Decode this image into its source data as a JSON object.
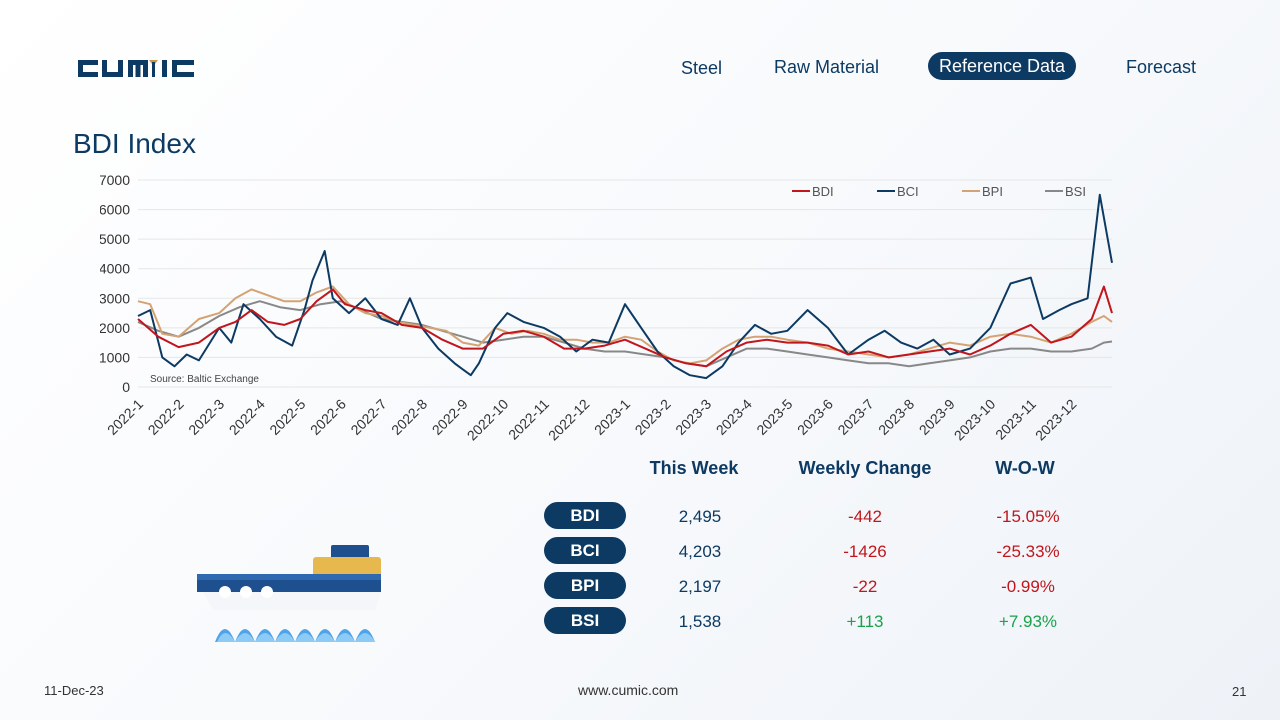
{
  "brand": {
    "logo_text": "CUMIC"
  },
  "nav": {
    "items": [
      {
        "label": "Steel",
        "active": false
      },
      {
        "label": "Raw Material",
        "active": false
      },
      {
        "label": "Reference Data",
        "active": true
      },
      {
        "label": "Forecast",
        "active": false
      }
    ]
  },
  "page": {
    "title": "BDI Index"
  },
  "chart_data": {
    "type": "line",
    "title": "",
    "source": "Source: Baltic Exchange",
    "ylim": [
      0,
      7000
    ],
    "yticks": [
      0,
      1000,
      2000,
      3000,
      4000,
      5000,
      6000,
      7000
    ],
    "categories": [
      "2022-1",
      "2022-2",
      "2022-3",
      "2022-4",
      "2022-5",
      "2022-6",
      "2022-7",
      "2022-8",
      "2022-9",
      "2022-10",
      "2022-11",
      "2022-12",
      "2023-1",
      "2023-2",
      "2023-3",
      "2023-4",
      "2023-5",
      "2023-6",
      "2023-7",
      "2023-8",
      "2023-9",
      "2023-10",
      "2023-11",
      "2023-12"
    ],
    "legend_position": "top-right",
    "grid": true,
    "series": [
      {
        "name": "BDI",
        "color": "#c0161c",
        "points": [
          [
            0,
            2300
          ],
          [
            0.5,
            1700
          ],
          [
            1,
            1350
          ],
          [
            1.5,
            1500
          ],
          [
            2,
            2000
          ],
          [
            2.4,
            2200
          ],
          [
            2.8,
            2600
          ],
          [
            3.2,
            2200
          ],
          [
            3.6,
            2100
          ],
          [
            4,
            2300
          ],
          [
            4.4,
            2900
          ],
          [
            4.8,
            3300
          ],
          [
            5.1,
            2800
          ],
          [
            5.6,
            2600
          ],
          [
            6,
            2500
          ],
          [
            6.5,
            2100
          ],
          [
            7,
            2000
          ],
          [
            7.5,
            1600
          ],
          [
            8,
            1300
          ],
          [
            8.5,
            1300
          ],
          [
            9,
            1800
          ],
          [
            9.5,
            1900
          ],
          [
            10,
            1700
          ],
          [
            10.5,
            1300
          ],
          [
            11,
            1300
          ],
          [
            11.5,
            1400
          ],
          [
            12,
            1600
          ],
          [
            12.5,
            1300
          ],
          [
            13,
            1000
          ],
          [
            13.5,
            800
          ],
          [
            14,
            700
          ],
          [
            14.5,
            1200
          ],
          [
            15,
            1500
          ],
          [
            15.5,
            1600
          ],
          [
            16,
            1500
          ],
          [
            16.5,
            1500
          ],
          [
            17,
            1400
          ],
          [
            17.5,
            1100
          ],
          [
            18,
            1200
          ],
          [
            18.5,
            1000
          ],
          [
            19,
            1100
          ],
          [
            19.5,
            1200
          ],
          [
            20,
            1300
          ],
          [
            20.5,
            1100
          ],
          [
            21,
            1400
          ],
          [
            21.5,
            1800
          ],
          [
            22,
            2100
          ],
          [
            22.5,
            1500
          ],
          [
            23,
            1700
          ],
          [
            23.5,
            2300
          ],
          [
            23.8,
            3400
          ],
          [
            24,
            2500
          ]
        ]
      },
      {
        "name": "BCI",
        "color": "#0d3a63",
        "points": [
          [
            0,
            2400
          ],
          [
            0.3,
            2600
          ],
          [
            0.6,
            1000
          ],
          [
            0.9,
            700
          ],
          [
            1.2,
            1100
          ],
          [
            1.5,
            900
          ],
          [
            2,
            2000
          ],
          [
            2.3,
            1500
          ],
          [
            2.6,
            2800
          ],
          [
            3,
            2300
          ],
          [
            3.4,
            1700
          ],
          [
            3.8,
            1400
          ],
          [
            4.1,
            2600
          ],
          [
            4.3,
            3600
          ],
          [
            4.6,
            4600
          ],
          [
            4.8,
            3000
          ],
          [
            5.2,
            2500
          ],
          [
            5.6,
            3000
          ],
          [
            6,
            2300
          ],
          [
            6.4,
            2100
          ],
          [
            6.7,
            3000
          ],
          [
            7,
            2000
          ],
          [
            7.4,
            1300
          ],
          [
            7.8,
            800
          ],
          [
            8,
            600
          ],
          [
            8.2,
            400
          ],
          [
            8.4,
            800
          ],
          [
            8.8,
            2000
          ],
          [
            9.1,
            2500
          ],
          [
            9.5,
            2200
          ],
          [
            10,
            2000
          ],
          [
            10.4,
            1700
          ],
          [
            10.8,
            1200
          ],
          [
            11.2,
            1600
          ],
          [
            11.6,
            1500
          ],
          [
            12,
            2800
          ],
          [
            12.4,
            2000
          ],
          [
            12.8,
            1200
          ],
          [
            13.2,
            700
          ],
          [
            13.6,
            400
          ],
          [
            14,
            300
          ],
          [
            14.4,
            700
          ],
          [
            14.8,
            1500
          ],
          [
            15.2,
            2100
          ],
          [
            15.6,
            1800
          ],
          [
            16,
            1900
          ],
          [
            16.5,
            2600
          ],
          [
            17,
            2000
          ],
          [
            17.5,
            1100
          ],
          [
            18,
            1600
          ],
          [
            18.4,
            1900
          ],
          [
            18.8,
            1500
          ],
          [
            19.2,
            1300
          ],
          [
            19.6,
            1600
          ],
          [
            20,
            1100
          ],
          [
            20.5,
            1300
          ],
          [
            21,
            2000
          ],
          [
            21.5,
            3500
          ],
          [
            22,
            3700
          ],
          [
            22.3,
            2300
          ],
          [
            22.7,
            2600
          ],
          [
            23,
            2800
          ],
          [
            23.4,
            3000
          ],
          [
            23.7,
            6500
          ],
          [
            24,
            4200
          ]
        ]
      },
      {
        "name": "BPI",
        "color": "#d4a373",
        "points": [
          [
            0,
            2900
          ],
          [
            0.3,
            2800
          ],
          [
            0.6,
            1800
          ],
          [
            1,
            1700
          ],
          [
            1.5,
            2300
          ],
          [
            2,
            2500
          ],
          [
            2.4,
            3000
          ],
          [
            2.8,
            3300
          ],
          [
            3.2,
            3100
          ],
          [
            3.6,
            2900
          ],
          [
            4,
            2900
          ],
          [
            4.4,
            3200
          ],
          [
            4.8,
            3400
          ],
          [
            5.2,
            2800
          ],
          [
            5.6,
            2500
          ],
          [
            6,
            2400
          ],
          [
            6.4,
            2200
          ],
          [
            6.8,
            2100
          ],
          [
            7.2,
            2000
          ],
          [
            7.6,
            1900
          ],
          [
            8,
            1500
          ],
          [
            8.4,
            1400
          ],
          [
            8.8,
            2000
          ],
          [
            9.2,
            1800
          ],
          [
            9.6,
            1900
          ],
          [
            10,
            1800
          ],
          [
            10.4,
            1600
          ],
          [
            10.8,
            1600
          ],
          [
            11.2,
            1500
          ],
          [
            11.6,
            1500
          ],
          [
            12,
            1700
          ],
          [
            12.4,
            1600
          ],
          [
            12.8,
            1200
          ],
          [
            13.2,
            900
          ],
          [
            13.6,
            800
          ],
          [
            14,
            900
          ],
          [
            14.4,
            1300
          ],
          [
            14.8,
            1600
          ],
          [
            15.2,
            1700
          ],
          [
            15.6,
            1700
          ],
          [
            16,
            1600
          ],
          [
            16.5,
            1500
          ],
          [
            17,
            1300
          ],
          [
            17.5,
            1200
          ],
          [
            18,
            1100
          ],
          [
            18.5,
            1000
          ],
          [
            19,
            1100
          ],
          [
            19.5,
            1300
          ],
          [
            20,
            1500
          ],
          [
            20.5,
            1400
          ],
          [
            21,
            1700
          ],
          [
            21.5,
            1800
          ],
          [
            22,
            1700
          ],
          [
            22.5,
            1500
          ],
          [
            23,
            1800
          ],
          [
            23.5,
            2200
          ],
          [
            23.8,
            2400
          ],
          [
            24,
            2200
          ]
        ]
      },
      {
        "name": "BSI",
        "color": "#888888",
        "points": [
          [
            0,
            2200
          ],
          [
            0.5,
            1900
          ],
          [
            1,
            1700
          ],
          [
            1.5,
            2000
          ],
          [
            2,
            2400
          ],
          [
            2.5,
            2700
          ],
          [
            3,
            2900
          ],
          [
            3.5,
            2700
          ],
          [
            4,
            2600
          ],
          [
            4.5,
            2800
          ],
          [
            5,
            2900
          ],
          [
            5.5,
            2600
          ],
          [
            6,
            2300
          ],
          [
            6.5,
            2200
          ],
          [
            7,
            2100
          ],
          [
            7.5,
            1900
          ],
          [
            8,
            1700
          ],
          [
            8.5,
            1500
          ],
          [
            9,
            1600
          ],
          [
            9.5,
            1700
          ],
          [
            10,
            1700
          ],
          [
            10.5,
            1500
          ],
          [
            11,
            1300
          ],
          [
            11.5,
            1200
          ],
          [
            12,
            1200
          ],
          [
            12.5,
            1100
          ],
          [
            13,
            1000
          ],
          [
            13.5,
            800
          ],
          [
            14,
            700
          ],
          [
            14.5,
            1000
          ],
          [
            15,
            1300
          ],
          [
            15.5,
            1300
          ],
          [
            16,
            1200
          ],
          [
            16.5,
            1100
          ],
          [
            17,
            1000
          ],
          [
            17.5,
            900
          ],
          [
            18,
            800
          ],
          [
            18.5,
            800
          ],
          [
            19,
            700
          ],
          [
            19.5,
            800
          ],
          [
            20,
            900
          ],
          [
            20.5,
            1000
          ],
          [
            21,
            1200
          ],
          [
            21.5,
            1300
          ],
          [
            22,
            1300
          ],
          [
            22.5,
            1200
          ],
          [
            23,
            1200
          ],
          [
            23.5,
            1300
          ],
          [
            23.8,
            1500
          ],
          [
            24,
            1538
          ]
        ]
      }
    ]
  },
  "table": {
    "headers": [
      "This Week",
      "Weekly Change",
      "W-O-W"
    ],
    "rows": [
      {
        "index": "BDI",
        "value": "2,495",
        "change": "-442",
        "wow": "-15.05%",
        "trend": "neg"
      },
      {
        "index": "BCI",
        "value": "4,203",
        "change": "-1426",
        "wow": "-25.33%",
        "trend": "neg"
      },
      {
        "index": "BPI",
        "value": "2,197",
        "change": "-22",
        "wow": "-0.99%",
        "trend": "neg"
      },
      {
        "index": "BSI",
        "value": "1,538",
        "change": "+113",
        "wow": "+7.93%",
        "trend": "pos"
      }
    ]
  },
  "footer": {
    "date": "11-Dec-23",
    "url": "www.cumic.com",
    "page_number": "21"
  },
  "colors": {
    "primary": "#0d3a63",
    "negative": "#c0161c",
    "positive": "#1aa34a",
    "logo_accent": "#c49a4a"
  }
}
